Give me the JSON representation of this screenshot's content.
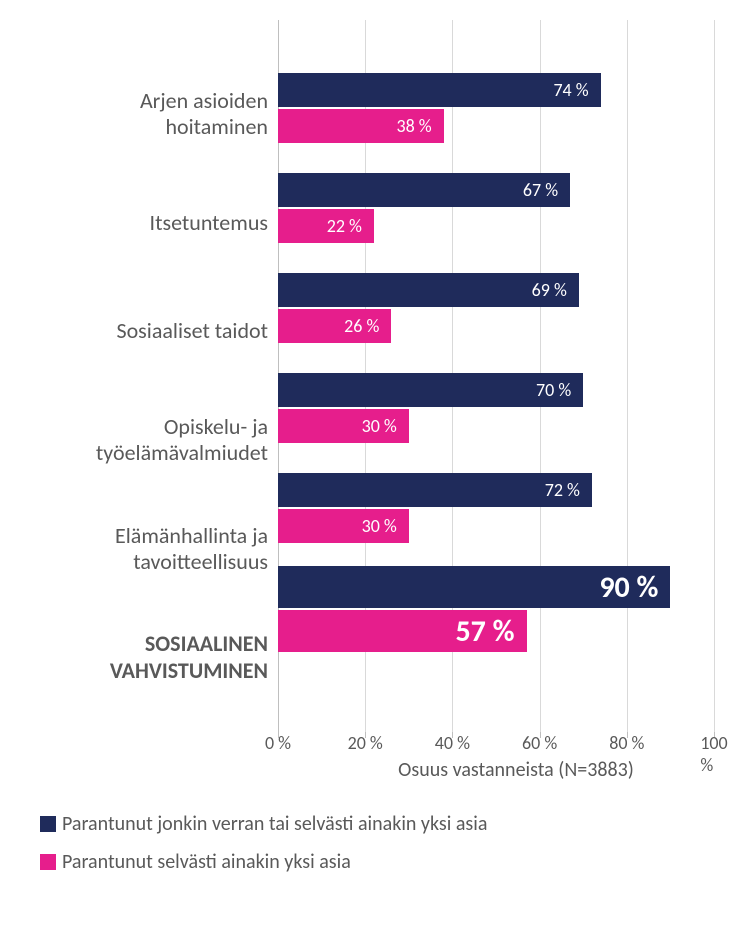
{
  "chart": {
    "type": "bar",
    "orientation": "horizontal",
    "background_color": "#ffffff",
    "grid_color": "#d9d9d9",
    "axis_color": "#bfbfbf",
    "text_color": "#595959",
    "x_axis": {
      "min": 0,
      "max": 100,
      "tick_step": 20,
      "ticks": [
        "0 %",
        "20 %",
        "40 %",
        "60 %",
        "80 %",
        "100 %"
      ],
      "title": "Osuus vastanneista (N=3883)"
    },
    "categories": [
      {
        "label": "Arjen asioiden\nhoitaminen",
        "bold": false
      },
      {
        "label": "Itsetuntemus",
        "bold": false
      },
      {
        "label": "Sosiaaliset taidot",
        "bold": false
      },
      {
        "label": "Opiskelu- ja\ntyöelämävalmiudet",
        "bold": false
      },
      {
        "label": "Elämänhallinta ja\ntavoitteellisuus",
        "bold": false
      },
      {
        "label": "SOSIAALINEN\nVAHVISTUMINEN",
        "bold": true
      }
    ],
    "series": [
      {
        "name": "Parantunut jonkin verran tai selvästi ainakin yksi asia",
        "color": "#1f2b5b",
        "values": [
          74,
          67,
          69,
          70,
          72,
          90
        ],
        "labels": [
          "74 %",
          "67 %",
          "69 %",
          "70 %",
          "72 %",
          "90 %"
        ]
      },
      {
        "name": "Parantunut selvästi ainakin yksi asia",
        "color": "#e61e8c",
        "values": [
          38,
          22,
          26,
          30,
          30,
          57
        ],
        "labels": [
          "38 %",
          "22 %",
          "26 %",
          "30 %",
          "30 %",
          "57 %"
        ]
      }
    ],
    "highlight_index": 5,
    "bar_label_color": "#ffffff",
    "bar_label_fontsize": 18,
    "highlight_label_fontsize": 30,
    "axis_fontsize": 18,
    "legend_fontsize": 20,
    "category_fontsize": 22
  }
}
